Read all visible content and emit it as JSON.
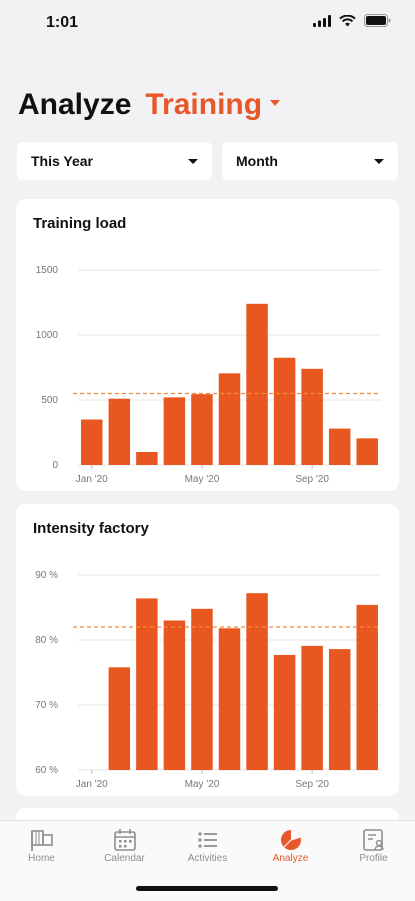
{
  "status": {
    "time": "1:01"
  },
  "header": {
    "title": "Analyze",
    "selector": "Training"
  },
  "filters": {
    "period": "This Year",
    "granularity": "Month"
  },
  "colors": {
    "accent": "#e8572a",
    "bar": "#e8571f",
    "inactive": "#8e8e93"
  },
  "chart_data": [
    {
      "type": "bar",
      "title": "Training load",
      "x_tick_labels": [
        "Jan '20",
        "May '20",
        "Sep '20"
      ],
      "y_tick_labels": [
        "0",
        "500",
        "1000",
        "1500"
      ],
      "ylim": [
        0,
        1500
      ],
      "values": [
        350,
        510,
        100,
        520,
        545,
        705,
        1240,
        825,
        740,
        280,
        205
      ],
      "average": 550,
      "grid": true
    },
    {
      "type": "bar",
      "title": "Intensity factory",
      "x_tick_labels": [
        "Jan '20",
        "May '20",
        "Sep '20"
      ],
      "y_tick_labels": [
        "60 %",
        "70 %",
        "80 %",
        "90 %"
      ],
      "ylim": [
        60,
        90
      ],
      "values": [
        null,
        75.8,
        86.4,
        83.0,
        84.8,
        81.8,
        87.2,
        77.7,
        79.1,
        78.6,
        85.4
      ],
      "average": 82.0,
      "grid": true
    }
  ],
  "tabs": [
    {
      "label": "Home",
      "icon": "home-icon"
    },
    {
      "label": "Calendar",
      "icon": "calendar-icon"
    },
    {
      "label": "Activities",
      "icon": "activities-icon"
    },
    {
      "label": "Analyze",
      "icon": "analyze-icon",
      "active": true
    },
    {
      "label": "Profile",
      "icon": "profile-icon"
    }
  ]
}
